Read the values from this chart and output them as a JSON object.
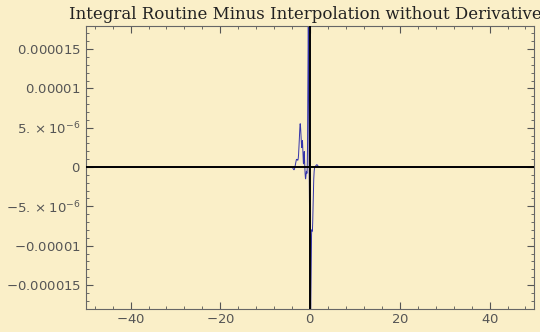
{
  "title": "Integral Routine Minus Interpolation without Derivatives",
  "xlim": [
    -50,
    50
  ],
  "ylim": [
    -1.8e-05,
    1.8e-05
  ],
  "background_color": "#faefc8",
  "line_color": "#3333aa",
  "axis_color": "#000000",
  "title_color": "#222222",
  "tick_label_color": "#222222",
  "yticks": [
    -1.5e-05,
    -1e-05,
    -5e-06,
    0,
    5e-06,
    1e-05,
    1.5e-05
  ],
  "xticks": [
    -40,
    -20,
    0,
    20,
    40
  ],
  "title_fontsize": 12,
  "tick_fontsize": 9.5,
  "figsize": [
    5.4,
    3.32
  ],
  "dpi": 100
}
